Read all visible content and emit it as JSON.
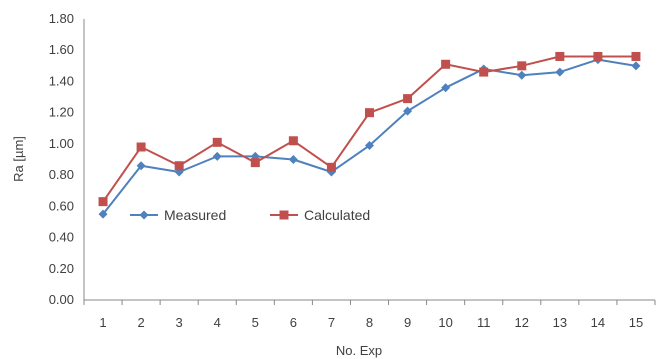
{
  "chart_data": {
    "type": "line",
    "title": "",
    "xlabel": "No. Exp",
    "ylabel": "Ra [µm]",
    "x": [
      1,
      2,
      3,
      4,
      5,
      6,
      7,
      8,
      9,
      10,
      11,
      12,
      13,
      14,
      15
    ],
    "ylim": [
      0,
      1.8
    ],
    "ystep": 0.2,
    "ytick_decimals": 2,
    "grid": false,
    "legend": "inside-bottom-left",
    "series": [
      {
        "name": "Measured",
        "color": "#4F81BD",
        "marker": "diamond",
        "values": [
          0.55,
          0.86,
          0.82,
          0.92,
          0.92,
          0.9,
          0.82,
          0.99,
          1.21,
          1.36,
          1.48,
          1.44,
          1.46,
          1.54,
          1.5
        ]
      },
      {
        "name": "Calculated",
        "color": "#C0504D",
        "marker": "square",
        "values": [
          0.63,
          0.98,
          0.86,
          1.01,
          0.88,
          1.02,
          0.85,
          1.2,
          1.29,
          1.51,
          1.46,
          1.5,
          1.56,
          1.56,
          1.56
        ]
      }
    ]
  }
}
